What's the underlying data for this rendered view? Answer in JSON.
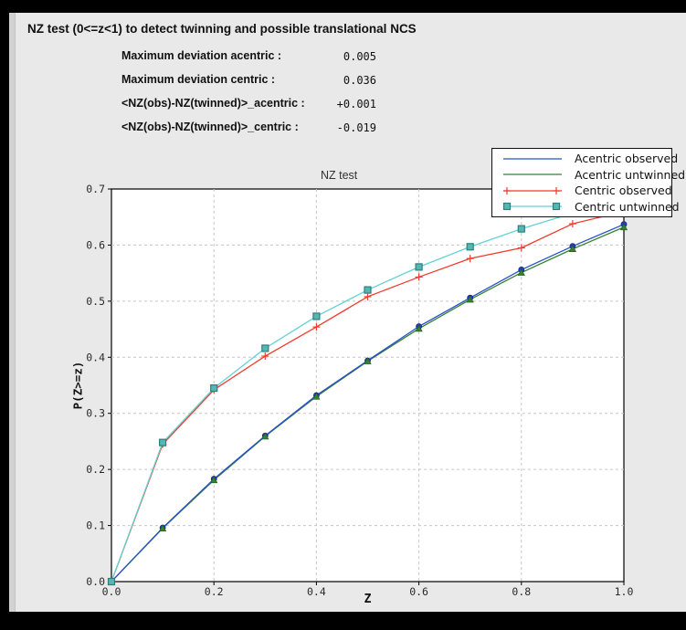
{
  "header": {
    "title": "NZ test (0<=z<1) to detect twinning and possible translational NCS"
  },
  "stats": [
    {
      "label": "Maximum deviation acentric :",
      "value": "0.005"
    },
    {
      "label": "Maximum deviation centric :",
      "value": "0.036"
    },
    {
      "label": "<NZ(obs)-NZ(twinned)>_acentric :",
      "value": "+0.001"
    },
    {
      "label": "<NZ(obs)-NZ(twinned)>_centric :",
      "value": "-0.019"
    }
  ],
  "chart_data": {
    "type": "line",
    "title": "NZ test",
    "xlabel": "Z",
    "ylabel": "P(Z>=z)",
    "xlim": [
      0.0,
      1.0
    ],
    "ylim": [
      0.0,
      0.7
    ],
    "grid": true,
    "legend_position": "top-right",
    "xticks": {
      "values": [
        0.0,
        0.2,
        0.4,
        0.6,
        0.8,
        1.0
      ],
      "labels": [
        "0.0",
        "0.2",
        "0.4",
        "0.6",
        "0.8",
        "1.0"
      ]
    },
    "yticks": {
      "values": [
        0.0,
        0.1,
        0.2,
        0.3,
        0.4,
        0.5,
        0.6,
        0.7
      ],
      "labels": [
        "0.0",
        "0.1",
        "0.2",
        "0.3",
        "0.4",
        "0.5",
        "0.6",
        "0.7"
      ]
    },
    "x": [
      0.0,
      0.1,
      0.2,
      0.3,
      0.4,
      0.5,
      0.6,
      0.7,
      0.8,
      0.9,
      1.0
    ],
    "series": [
      {
        "name": "Acentric observed",
        "color": "#2750cc",
        "marker": "circle",
        "marker_fill": "#2440b4",
        "marker_stroke": "#16288a",
        "values": [
          0.0,
          0.096,
          0.183,
          0.26,
          0.332,
          0.394,
          0.455,
          0.506,
          0.556,
          0.598,
          0.637
        ]
      },
      {
        "name": "Acentric untwinned",
        "color": "#35812f",
        "marker": "triangle",
        "marker_fill": "#35812f",
        "marker_stroke": "#1e5c1e",
        "values": [
          0.0,
          0.095,
          0.181,
          0.259,
          0.33,
          0.393,
          0.451,
          0.503,
          0.551,
          0.593,
          0.632
        ]
      },
      {
        "name": "Centric observed",
        "color": "#ef3b2c",
        "marker": "plus",
        "marker_fill": "#ef3b2c",
        "marker_stroke": "#ef3b2c",
        "values": [
          0.0,
          0.245,
          0.342,
          0.402,
          0.454,
          0.508,
          0.543,
          0.576,
          0.595,
          0.638,
          0.66
        ]
      },
      {
        "name": "Centric untwinned",
        "color": "#63d2d4",
        "marker": "square",
        "marker_fill": "#57b6b2",
        "marker_stroke": "#2c7f7f",
        "values": [
          0.0,
          0.248,
          0.345,
          0.416,
          0.473,
          0.52,
          0.561,
          0.597,
          0.629,
          0.657,
          0.683
        ]
      }
    ],
    "colors": {
      "plot_bg": "#ffffff",
      "panel_bg": "#e9e9e9",
      "frame": "#000000",
      "grid": "#c6c6c6",
      "axis": "#000000",
      "tick_text": "#2a2a2a"
    }
  }
}
